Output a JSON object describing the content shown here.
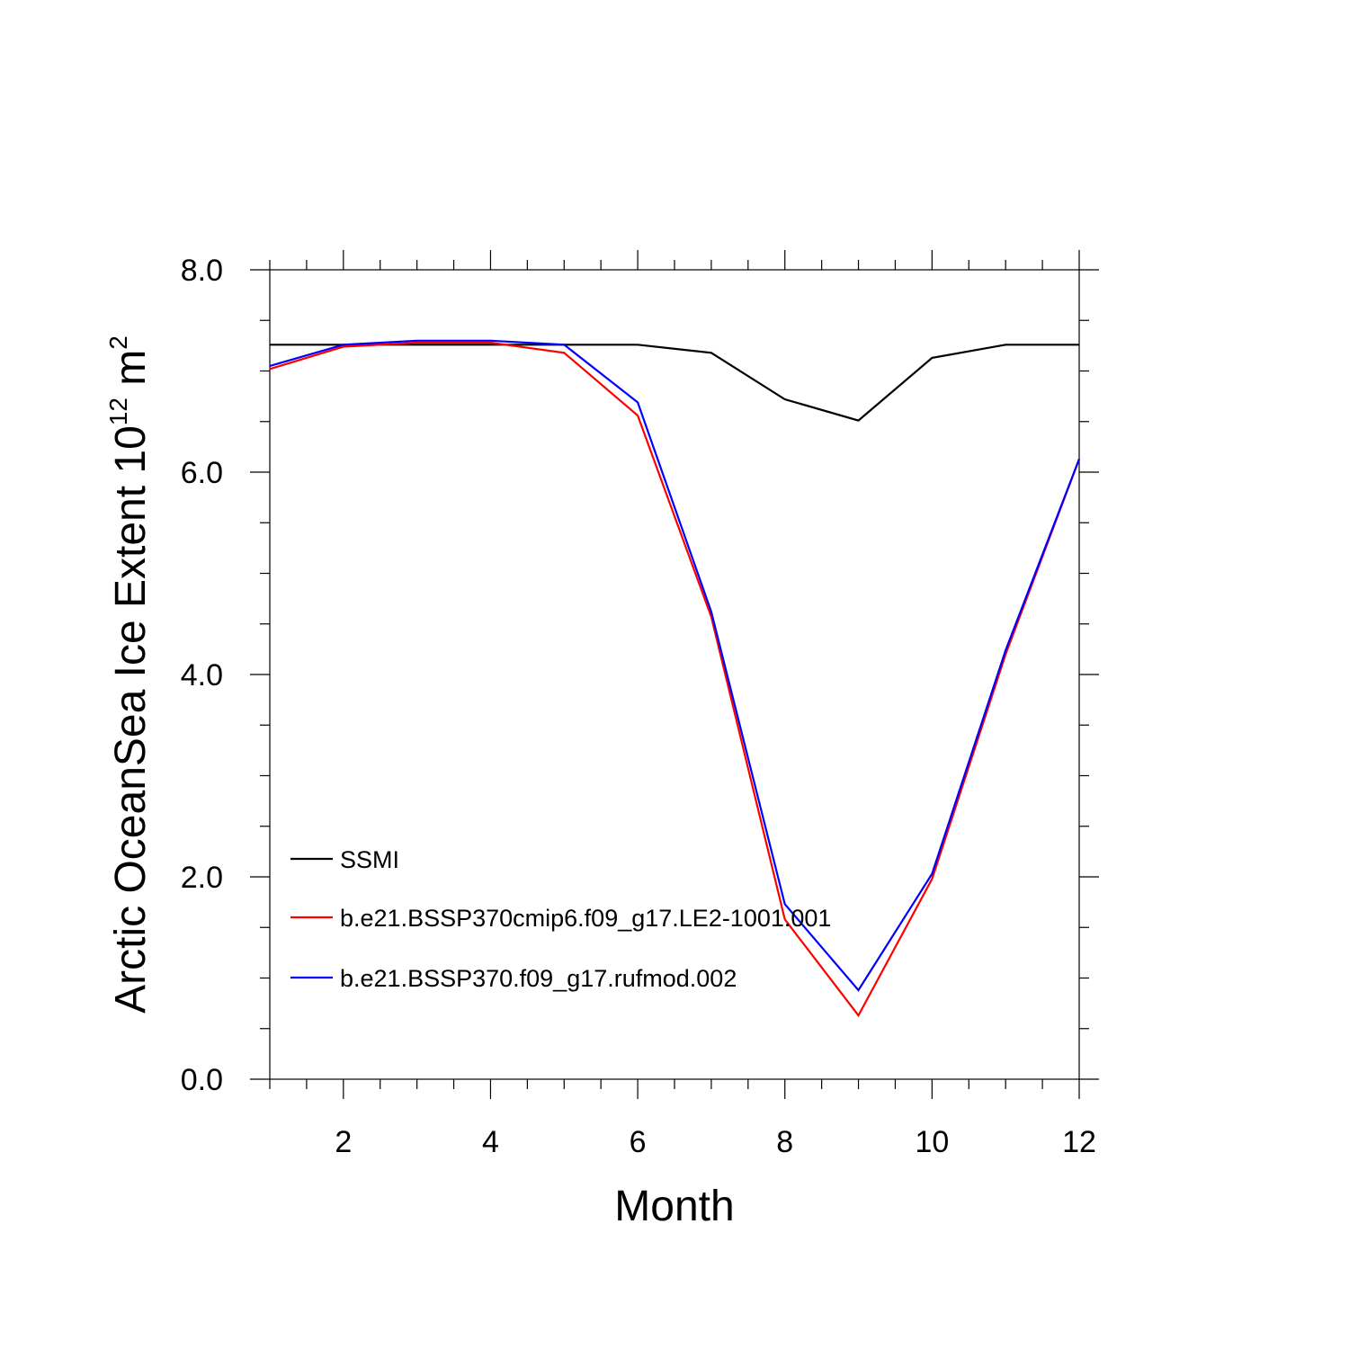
{
  "chart_data": {
    "type": "line",
    "title": "",
    "xlabel": "Month",
    "ylabel": {
      "text": "Arctic OceanSea Ice Extent 10",
      "superscript": "12",
      "unit": " m",
      "unit_superscript": "2"
    },
    "xlim": [
      1,
      12
    ],
    "ylim": [
      0,
      8
    ],
    "x": [
      1,
      2,
      3,
      4,
      5,
      6,
      7,
      8,
      9,
      10,
      11,
      12
    ],
    "x_ticks": [
      "2",
      "4",
      "6",
      "8",
      "10",
      "12"
    ],
    "y_ticks": [
      "0.0",
      "2.0",
      "4.0",
      "6.0",
      "8.0"
    ],
    "grid": false,
    "legend_position": "bottom-left",
    "series": [
      {
        "name": "SSMI",
        "color": "#000000",
        "values": [
          7.26,
          7.26,
          7.26,
          7.26,
          7.26,
          7.26,
          7.18,
          6.72,
          6.51,
          7.13,
          7.26,
          7.26
        ]
      },
      {
        "name": "b.e21.BSSP370cmip6.f09_g17.LE2-1001.001",
        "color": "#ff0000",
        "values": [
          7.02,
          7.24,
          7.28,
          7.28,
          7.18,
          6.56,
          4.57,
          1.58,
          0.63,
          1.98,
          4.2,
          6.13
        ]
      },
      {
        "name": "b.e21.BSSP370.f09_g17.rufmod.002",
        "color": "#0000ff",
        "values": [
          7.05,
          7.26,
          7.3,
          7.3,
          7.26,
          6.69,
          4.62,
          1.73,
          0.88,
          2.03,
          4.24,
          6.13
        ]
      }
    ]
  }
}
